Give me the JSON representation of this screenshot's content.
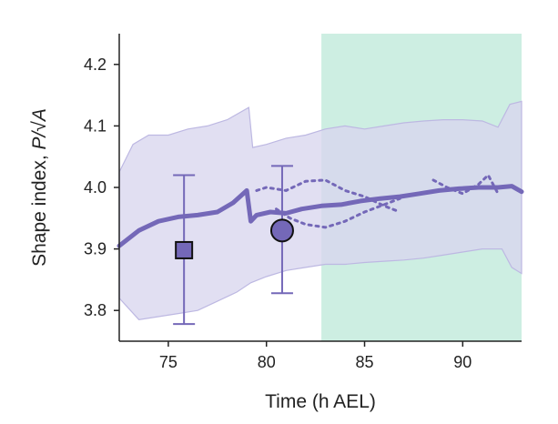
{
  "colors": {
    "series": "#7468b8",
    "band": "#d9d6ee",
    "band_edge": "#bdb8e2",
    "shade": "#cdeee2",
    "axis": "#222222"
  },
  "chart_data": {
    "type": "line",
    "xlabel": "Time (h AEL)",
    "ylabel_prefix": "Shape index, ",
    "ylabel_formula": "P/√A",
    "xlim": [
      72.5,
      93.0
    ],
    "ylim": [
      3.75,
      4.25
    ],
    "xticks": [
      75,
      80,
      85,
      90
    ],
    "yticks": [
      3.8,
      3.9,
      4.0,
      4.1,
      4.2
    ],
    "xtick_labels": [
      "75",
      "80",
      "85",
      "90"
    ],
    "ytick_labels": [
      "3.8",
      "3.9",
      "4.0",
      "4.1",
      "4.2"
    ],
    "shaded_region": {
      "x_start": 82.8,
      "x_end": 93.0
    },
    "mean_line": {
      "x": [
        72.5,
        73.5,
        74.5,
        75.5,
        76.5,
        77.5,
        78.3,
        79.0,
        79.2,
        79.5,
        80.2,
        81.0,
        81.8,
        82.8,
        83.8,
        84.8,
        85.8,
        86.8,
        87.8,
        88.8,
        89.8,
        90.8,
        91.8,
        92.5,
        93.0
      ],
      "y": [
        3.905,
        3.93,
        3.945,
        3.952,
        3.955,
        3.96,
        3.975,
        3.995,
        3.945,
        3.955,
        3.96,
        3.958,
        3.965,
        3.97,
        3.972,
        3.978,
        3.982,
        3.985,
        3.99,
        3.995,
        3.998,
        4.0,
        4.0,
        4.002,
        3.993
      ]
    },
    "band_upper": {
      "x": [
        72.5,
        73.2,
        74.0,
        75.0,
        76.0,
        77.0,
        78.0,
        79.1,
        79.3,
        80.0,
        81.0,
        82.0,
        83.0,
        84.0,
        85.0,
        86.0,
        87.0,
        88.0,
        89.0,
        90.0,
        91.0,
        91.8,
        92.4,
        93.0
      ],
      "y": [
        4.025,
        4.07,
        4.085,
        4.085,
        4.095,
        4.1,
        4.11,
        4.13,
        4.065,
        4.07,
        4.08,
        4.085,
        4.095,
        4.1,
        4.095,
        4.1,
        4.105,
        4.108,
        4.11,
        4.11,
        4.108,
        4.098,
        4.135,
        4.14
      ]
    },
    "band_lower": {
      "x": [
        72.5,
        73.5,
        74.5,
        75.5,
        76.5,
        77.5,
        78.5,
        79.2,
        80.0,
        81.0,
        82.0,
        83.0,
        84.0,
        85.0,
        86.0,
        87.0,
        88.0,
        89.0,
        90.0,
        91.0,
        92.0,
        92.5,
        93.0
      ],
      "y": [
        3.82,
        3.785,
        3.79,
        3.795,
        3.8,
        3.815,
        3.83,
        3.845,
        3.855,
        3.865,
        3.87,
        3.875,
        3.875,
        3.878,
        3.88,
        3.882,
        3.885,
        3.89,
        3.895,
        3.9,
        3.9,
        3.87,
        3.86
      ]
    },
    "dotted_upper": {
      "x": [
        79.5,
        80.0,
        81.0,
        82.0,
        83.0,
        84.0,
        85.0,
        86.0,
        86.8
      ],
      "y": [
        3.995,
        4.0,
        3.995,
        4.01,
        4.012,
        3.995,
        3.985,
        3.97,
        3.96
      ]
    },
    "dotted_lower": {
      "x": [
        80.5,
        81.2,
        82.0,
        83.0,
        84.0,
        85.0,
        86.0,
        86.8
      ],
      "y": [
        3.965,
        3.95,
        3.94,
        3.935,
        3.945,
        3.96,
        3.972,
        3.982
      ]
    },
    "dotted_lower_late": {
      "x": [
        88.5,
        89.2,
        90.0,
        90.8,
        91.3,
        91.8
      ],
      "y": [
        4.012,
        4.0,
        3.99,
        4.005,
        4.02,
        3.99
      ]
    },
    "markers": [
      {
        "name": "square-marker",
        "shape": "square",
        "x": 75.8,
        "y": 3.898,
        "err_low": 3.778,
        "err_high": 4.02
      },
      {
        "name": "circle-marker",
        "shape": "circle",
        "x": 80.8,
        "y": 3.93,
        "err_low": 3.828,
        "err_high": 4.035
      }
    ]
  }
}
